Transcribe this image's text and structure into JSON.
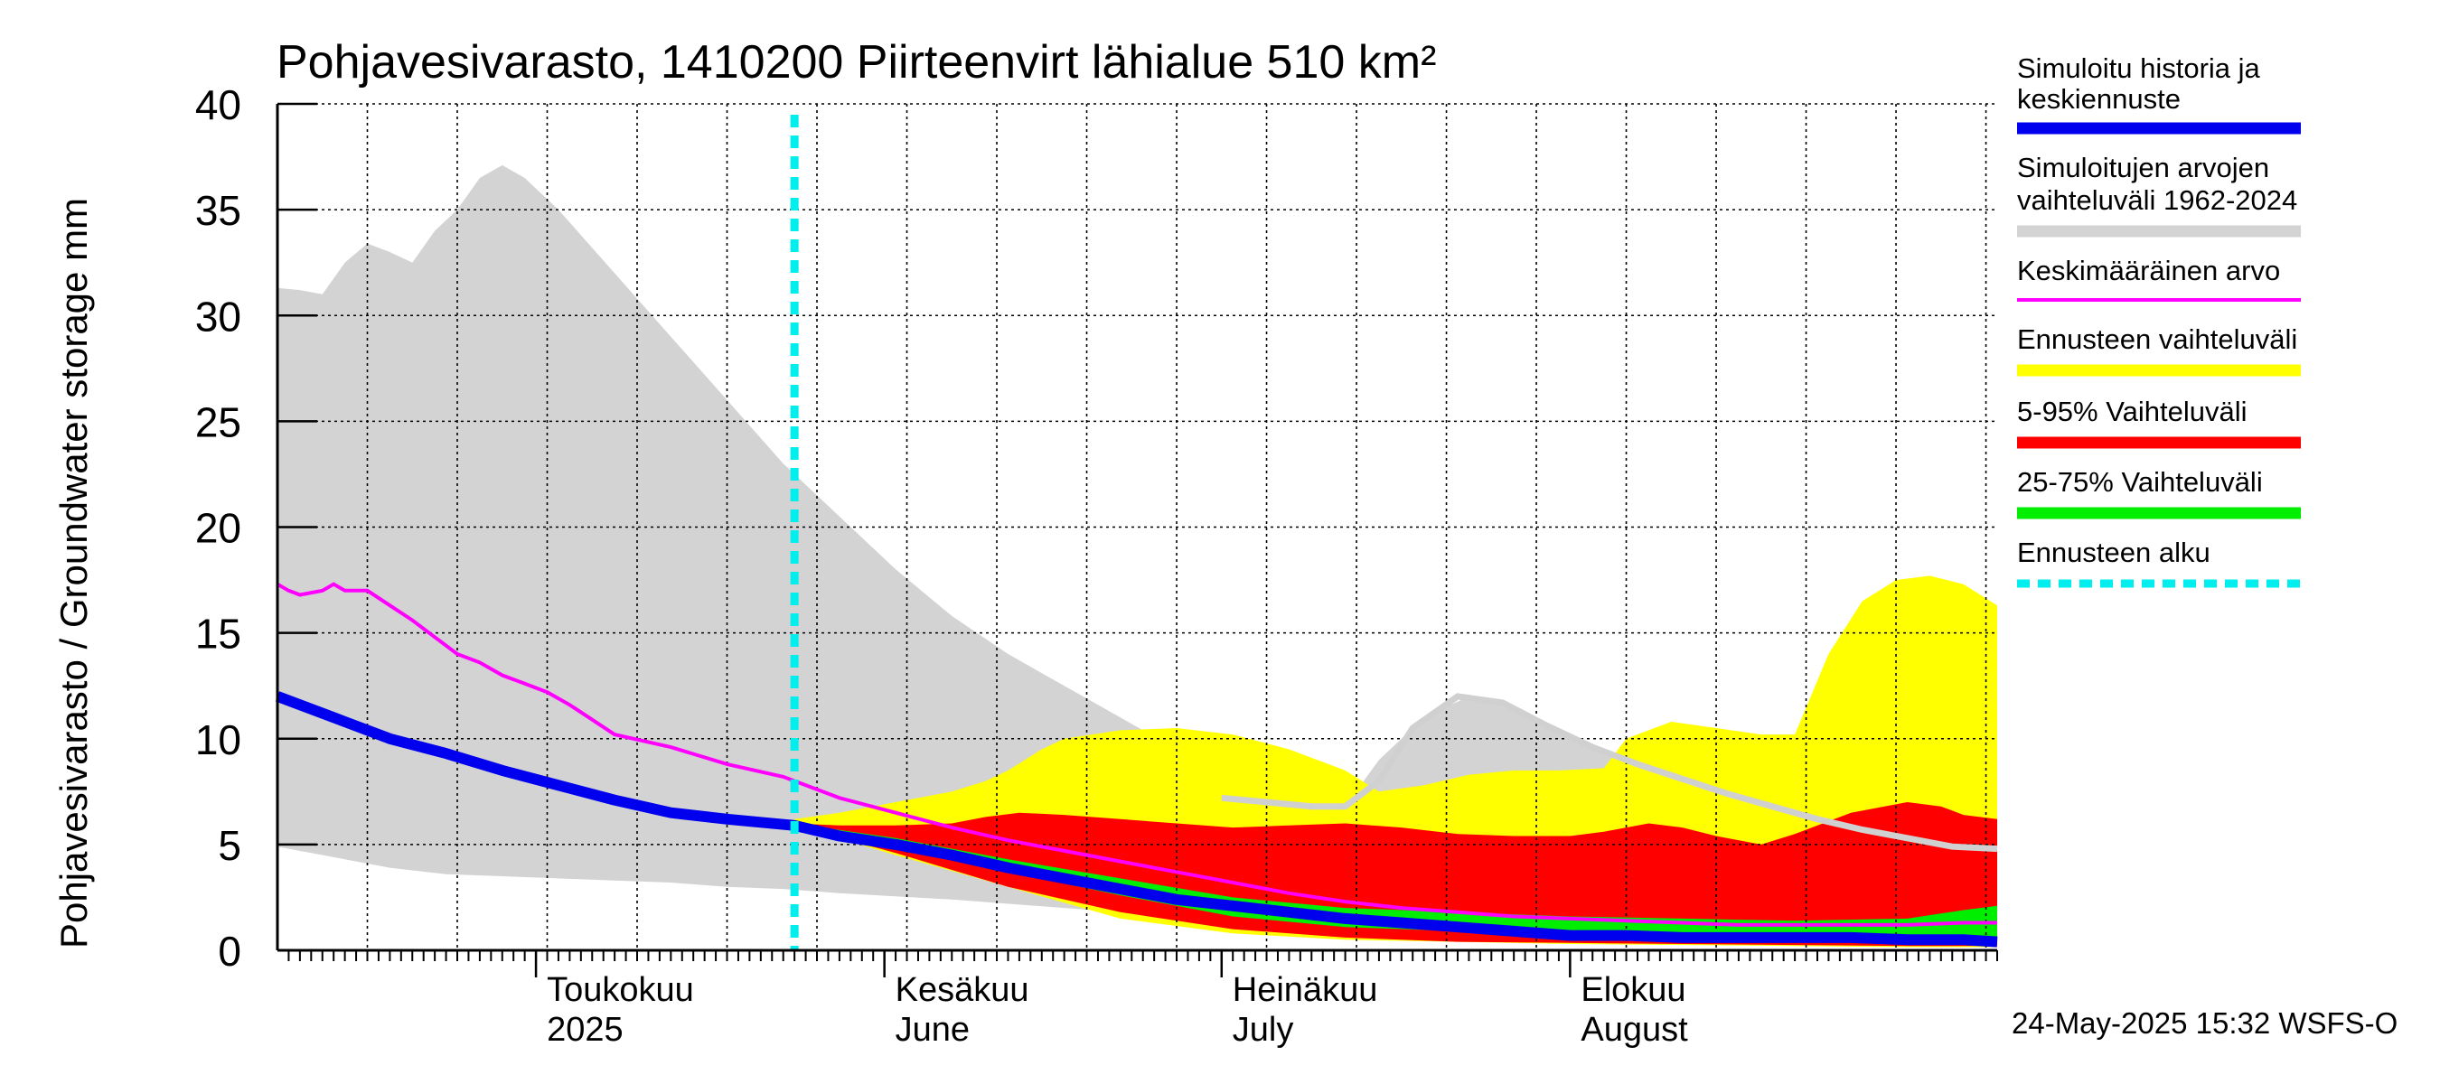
{
  "chart_data": {
    "type": "area",
    "title": "Pohjavesivarasto, 1410200 Piirteenvirt lähialue 510 km²",
    "ylabel": "Pohjavesivarasto / Groundwater storage   mm",
    "ylim": [
      0,
      40
    ],
    "yticks": [
      0,
      5,
      10,
      15,
      20,
      25,
      30,
      35,
      40
    ],
    "xlim_days": [
      0,
      153
    ],
    "x_unit": "days since 2025-04-08",
    "month_labels": [
      {
        "day": 23,
        "line1": "Toukokuu",
        "line2": "2025"
      },
      {
        "day": 54,
        "line1": "Kesäkuu",
        "line2": "June"
      },
      {
        "day": 84,
        "line1": "Heinäkuu",
        "line2": "July"
      },
      {
        "day": 115,
        "line1": "Elokuu",
        "line2": "August"
      }
    ],
    "forecast_start_day": 46,
    "footer": "24-May-2025 15:32 WSFS-O",
    "legend": [
      {
        "label_lines": [
          "Simuloitu historia ja",
          "keskiennuste"
        ],
        "color": "#0000ee",
        "style": "thick"
      },
      {
        "label_lines": [
          "Simuloitujen arvojen",
          "vaihteluväli 1962-2024"
        ],
        "color": "#d3d3d3",
        "style": "band"
      },
      {
        "label_lines": [
          "Keskimääräinen arvo"
        ],
        "color": "#ff00ff",
        "style": "thin"
      },
      {
        "label_lines": [
          "Ennusteen vaihteluväli"
        ],
        "color": "#ffff00",
        "style": "band"
      },
      {
        "label_lines": [
          "5-95% Vaihteluväli"
        ],
        "color": "#ff0000",
        "style": "band"
      },
      {
        "label_lines": [
          "25-75% Vaihteluväli"
        ],
        "color": "#00ee00",
        "style": "band"
      },
      {
        "label_lines": [
          "Ennusteen alku"
        ],
        "color": "#00eeee",
        "style": "dashed"
      }
    ],
    "series": [
      {
        "name": "hist_range",
        "color": "#d3d3d3",
        "upper": [
          [
            0,
            31.3
          ],
          [
            2,
            31.2
          ],
          [
            4,
            31
          ],
          [
            6,
            32.5
          ],
          [
            8,
            33.4
          ],
          [
            10,
            33
          ],
          [
            12,
            32.5
          ],
          [
            14,
            34
          ],
          [
            16,
            35
          ],
          [
            18,
            36.5
          ],
          [
            20,
            37.1
          ],
          [
            22,
            36.5
          ],
          [
            25,
            35
          ],
          [
            30,
            32
          ],
          [
            35,
            29
          ],
          [
            40,
            26
          ],
          [
            45,
            23
          ],
          [
            50,
            20.5
          ],
          [
            55,
            18
          ],
          [
            60,
            15.8
          ],
          [
            65,
            14
          ],
          [
            70,
            12.5
          ],
          [
            75,
            11
          ],
          [
            80,
            9.5
          ],
          [
            85,
            8.2
          ],
          [
            90,
            7.2
          ],
          [
            95,
            6.8
          ],
          [
            98,
            9
          ],
          [
            102,
            11
          ],
          [
            106,
            12
          ],
          [
            110,
            11.5
          ],
          [
            114,
            10.5
          ],
          [
            118,
            9.5
          ],
          [
            125,
            8
          ],
          [
            130,
            7
          ],
          [
            135,
            6
          ],
          [
            140,
            5.5
          ],
          [
            145,
            5.2
          ],
          [
            150,
            4.9
          ],
          [
            153,
            4.8
          ]
        ],
        "lower": [
          [
            0,
            4.9
          ],
          [
            5,
            4.4
          ],
          [
            10,
            3.9
          ],
          [
            15,
            3.6
          ],
          [
            20,
            3.5
          ],
          [
            25,
            3.4
          ],
          [
            30,
            3.3
          ],
          [
            35,
            3.2
          ],
          [
            40,
            3.0
          ],
          [
            45,
            2.9
          ],
          [
            50,
            2.7
          ],
          [
            60,
            2.4
          ],
          [
            70,
            2.0
          ],
          [
            80,
            1.6
          ],
          [
            90,
            1.2
          ],
          [
            100,
            0.9
          ],
          [
            110,
            0.8
          ],
          [
            120,
            0.7
          ],
          [
            130,
            0.6
          ],
          [
            140,
            0.6
          ],
          [
            150,
            0.5
          ],
          [
            153,
            0.5
          ]
        ]
      },
      {
        "name": "forecast_range",
        "color": "#ffff00",
        "upper": [
          [
            46,
            6.2
          ],
          [
            50,
            6.5
          ],
          [
            55,
            7
          ],
          [
            60,
            7.5
          ],
          [
            63,
            8
          ],
          [
            65,
            8.5
          ],
          [
            68,
            9.5
          ],
          [
            70,
            10
          ],
          [
            75,
            10.4
          ],
          [
            80,
            10.5
          ],
          [
            85,
            10.2
          ],
          [
            90,
            9.5
          ],
          [
            95,
            8.5
          ],
          [
            98,
            7.5
          ],
          [
            102,
            7.8
          ],
          [
            106,
            8.3
          ],
          [
            110,
            8.5
          ],
          [
            114,
            8.5
          ],
          [
            118,
            8.6
          ],
          [
            120,
            10
          ],
          [
            124,
            10.8
          ],
          [
            128,
            10.5
          ],
          [
            132,
            10.2
          ],
          [
            135,
            10.2
          ],
          [
            138,
            14
          ],
          [
            141,
            16.5
          ],
          [
            144,
            17.5
          ],
          [
            147,
            17.7
          ],
          [
            150,
            17.3
          ],
          [
            153,
            16.3
          ]
        ],
        "lower": [
          [
            46,
            5.9
          ],
          [
            55,
            4.5
          ],
          [
            65,
            3
          ],
          [
            75,
            1.5
          ],
          [
            85,
            0.8
          ],
          [
            95,
            0.5
          ],
          [
            105,
            0.4
          ],
          [
            115,
            0.3
          ],
          [
            125,
            0.25
          ],
          [
            135,
            0.2
          ],
          [
            145,
            0.15
          ],
          [
            153,
            0.15
          ]
        ]
      },
      {
        "name": "p5_95",
        "color": "#ff0000",
        "upper": [
          [
            46,
            6.0
          ],
          [
            50,
            5.9
          ],
          [
            55,
            5.9
          ],
          [
            60,
            6
          ],
          [
            63,
            6.3
          ],
          [
            66,
            6.5
          ],
          [
            70,
            6.4
          ],
          [
            75,
            6.2
          ],
          [
            80,
            6
          ],
          [
            85,
            5.8
          ],
          [
            90,
            5.9
          ],
          [
            95,
            6.0
          ],
          [
            100,
            5.8
          ],
          [
            105,
            5.5
          ],
          [
            110,
            5.4
          ],
          [
            115,
            5.4
          ],
          [
            118,
            5.6
          ],
          [
            122,
            6
          ],
          [
            125,
            5.8
          ],
          [
            128,
            5.4
          ],
          [
            132,
            5
          ],
          [
            135,
            5.5
          ],
          [
            140,
            6.5
          ],
          [
            145,
            7
          ],
          [
            148,
            6.8
          ],
          [
            150,
            6.4
          ],
          [
            153,
            6.2
          ]
        ],
        "lower": [
          [
            46,
            5.9
          ],
          [
            55,
            4.6
          ],
          [
            65,
            3.0
          ],
          [
            75,
            1.8
          ],
          [
            85,
            1.0
          ],
          [
            95,
            0.6
          ],
          [
            105,
            0.4
          ],
          [
            115,
            0.35
          ],
          [
            125,
            0.3
          ],
          [
            135,
            0.25
          ],
          [
            145,
            0.2
          ],
          [
            153,
            0.2
          ]
        ]
      },
      {
        "name": "p25_75",
        "color": "#00ee00",
        "upper": [
          [
            46,
            6.0
          ],
          [
            55,
            5.3
          ],
          [
            65,
            4.3
          ],
          [
            75,
            3.4
          ],
          [
            85,
            2.5
          ],
          [
            95,
            2.0
          ],
          [
            105,
            1.8
          ],
          [
            115,
            1.6
          ],
          [
            125,
            1.5
          ],
          [
            135,
            1.4
          ],
          [
            145,
            1.5
          ],
          [
            150,
            1.9
          ],
          [
            153,
            2.1
          ]
        ],
        "lower": [
          [
            46,
            5.9
          ],
          [
            55,
            4.9
          ],
          [
            65,
            3.7
          ],
          [
            75,
            2.6
          ],
          [
            85,
            1.6
          ],
          [
            95,
            1.1
          ],
          [
            105,
            0.9
          ],
          [
            115,
            0.6
          ],
          [
            125,
            0.5
          ],
          [
            135,
            0.5
          ],
          [
            145,
            0.6
          ],
          [
            153,
            0.6
          ]
        ]
      },
      {
        "name": "median_forecast",
        "color": "#0000ee",
        "points": [
          [
            0,
            12
          ],
          [
            5,
            11
          ],
          [
            10,
            10
          ],
          [
            15,
            9.3
          ],
          [
            20,
            8.5
          ],
          [
            25,
            7.8
          ],
          [
            30,
            7.1
          ],
          [
            35,
            6.5
          ],
          [
            40,
            6.2
          ],
          [
            46,
            5.9
          ],
          [
            50,
            5.4
          ],
          [
            55,
            5.0
          ],
          [
            60,
            4.5
          ],
          [
            65,
            3.9
          ],
          [
            70,
            3.4
          ],
          [
            75,
            2.9
          ],
          [
            80,
            2.4
          ],
          [
            85,
            2.1
          ],
          [
            90,
            1.8
          ],
          [
            95,
            1.5
          ],
          [
            100,
            1.3
          ],
          [
            105,
            1.1
          ],
          [
            110,
            0.9
          ],
          [
            115,
            0.7
          ],
          [
            120,
            0.7
          ],
          [
            125,
            0.6
          ],
          [
            130,
            0.6
          ],
          [
            135,
            0.6
          ],
          [
            140,
            0.6
          ],
          [
            145,
            0.5
          ],
          [
            150,
            0.5
          ],
          [
            153,
            0.4
          ]
        ]
      },
      {
        "name": "mean_value",
        "color": "#ff00ff",
        "points": [
          [
            0,
            17.3
          ],
          [
            1,
            17
          ],
          [
            2,
            16.8
          ],
          [
            4,
            17
          ],
          [
            5,
            17.3
          ],
          [
            6,
            17
          ],
          [
            8,
            17
          ],
          [
            10,
            16.3
          ],
          [
            12,
            15.6
          ],
          [
            14,
            14.8
          ],
          [
            16,
            14
          ],
          [
            18,
            13.6
          ],
          [
            20,
            13
          ],
          [
            22,
            12.6
          ],
          [
            24,
            12.2
          ],
          [
            26,
            11.6
          ],
          [
            28,
            10.9
          ],
          [
            30,
            10.2
          ],
          [
            35,
            9.6
          ],
          [
            40,
            8.8
          ],
          [
            45,
            8.2
          ],
          [
            50,
            7.2
          ],
          [
            55,
            6.5
          ],
          [
            60,
            5.8
          ],
          [
            65,
            5.2
          ],
          [
            70,
            4.7
          ],
          [
            75,
            4.2
          ],
          [
            80,
            3.7
          ],
          [
            85,
            3.2
          ],
          [
            90,
            2.7
          ],
          [
            95,
            2.3
          ],
          [
            100,
            2.0
          ],
          [
            105,
            1.8
          ],
          [
            110,
            1.6
          ],
          [
            115,
            1.5
          ],
          [
            120,
            1.4
          ],
          [
            125,
            1.3
          ],
          [
            130,
            1.2
          ],
          [
            135,
            1.2
          ],
          [
            140,
            1.2
          ],
          [
            145,
            1.2
          ],
          [
            150,
            1.3
          ],
          [
            153,
            1.3
          ]
        ]
      },
      {
        "name": "hist_range_continuation",
        "color": "#d0d0d0",
        "points": [
          [
            84,
            7.2
          ],
          [
            88,
            7.0
          ],
          [
            92,
            6.8
          ],
          [
            95,
            6.8
          ],
          [
            98,
            8
          ],
          [
            101,
            10.5
          ],
          [
            105,
            12
          ],
          [
            109,
            11.7
          ],
          [
            113,
            10.6
          ],
          [
            117,
            9.6
          ],
          [
            121,
            8.8
          ],
          [
            125,
            8.1
          ],
          [
            129,
            7.4
          ],
          [
            133,
            6.8
          ],
          [
            137,
            6.2
          ],
          [
            141,
            5.7
          ],
          [
            145,
            5.3
          ],
          [
            149,
            4.9
          ],
          [
            153,
            4.8
          ]
        ]
      }
    ]
  }
}
